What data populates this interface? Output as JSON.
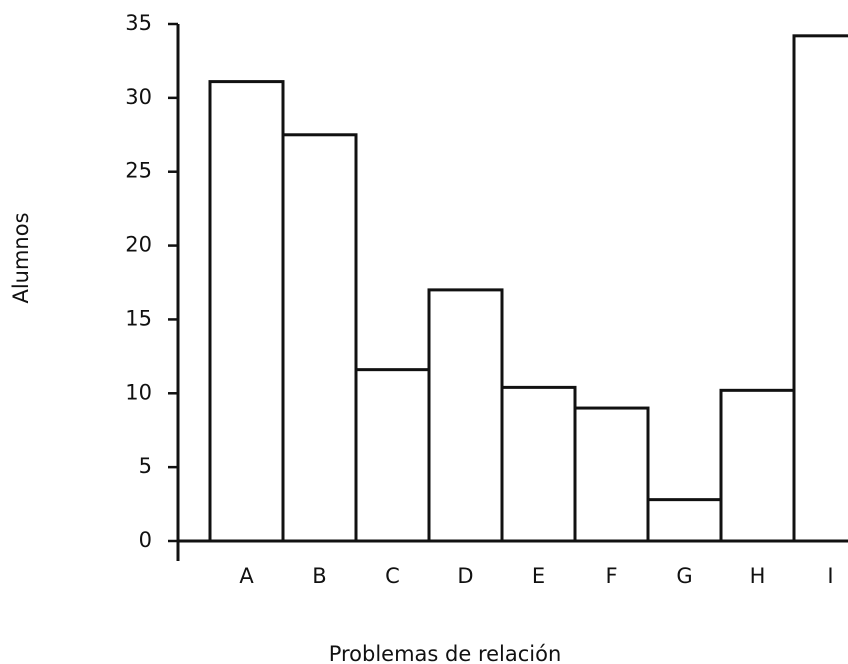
{
  "chart_data": {
    "type": "bar",
    "x_label": "Problemas de relación",
    "y_label": "Alumnos",
    "categories": [
      "A",
      "B",
      "C",
      "D",
      "E",
      "F",
      "G",
      "H",
      "I"
    ],
    "values": [
      31.1,
      27.5,
      11.6,
      17,
      10.4,
      9,
      2.8,
      10.2,
      34.2
    ],
    "color": "#ffffff",
    "ylim": [
      0,
      35
    ],
    "yticks": [
      0,
      5,
      10,
      15,
      20,
      25,
      30,
      35
    ],
    "grid": false
  }
}
